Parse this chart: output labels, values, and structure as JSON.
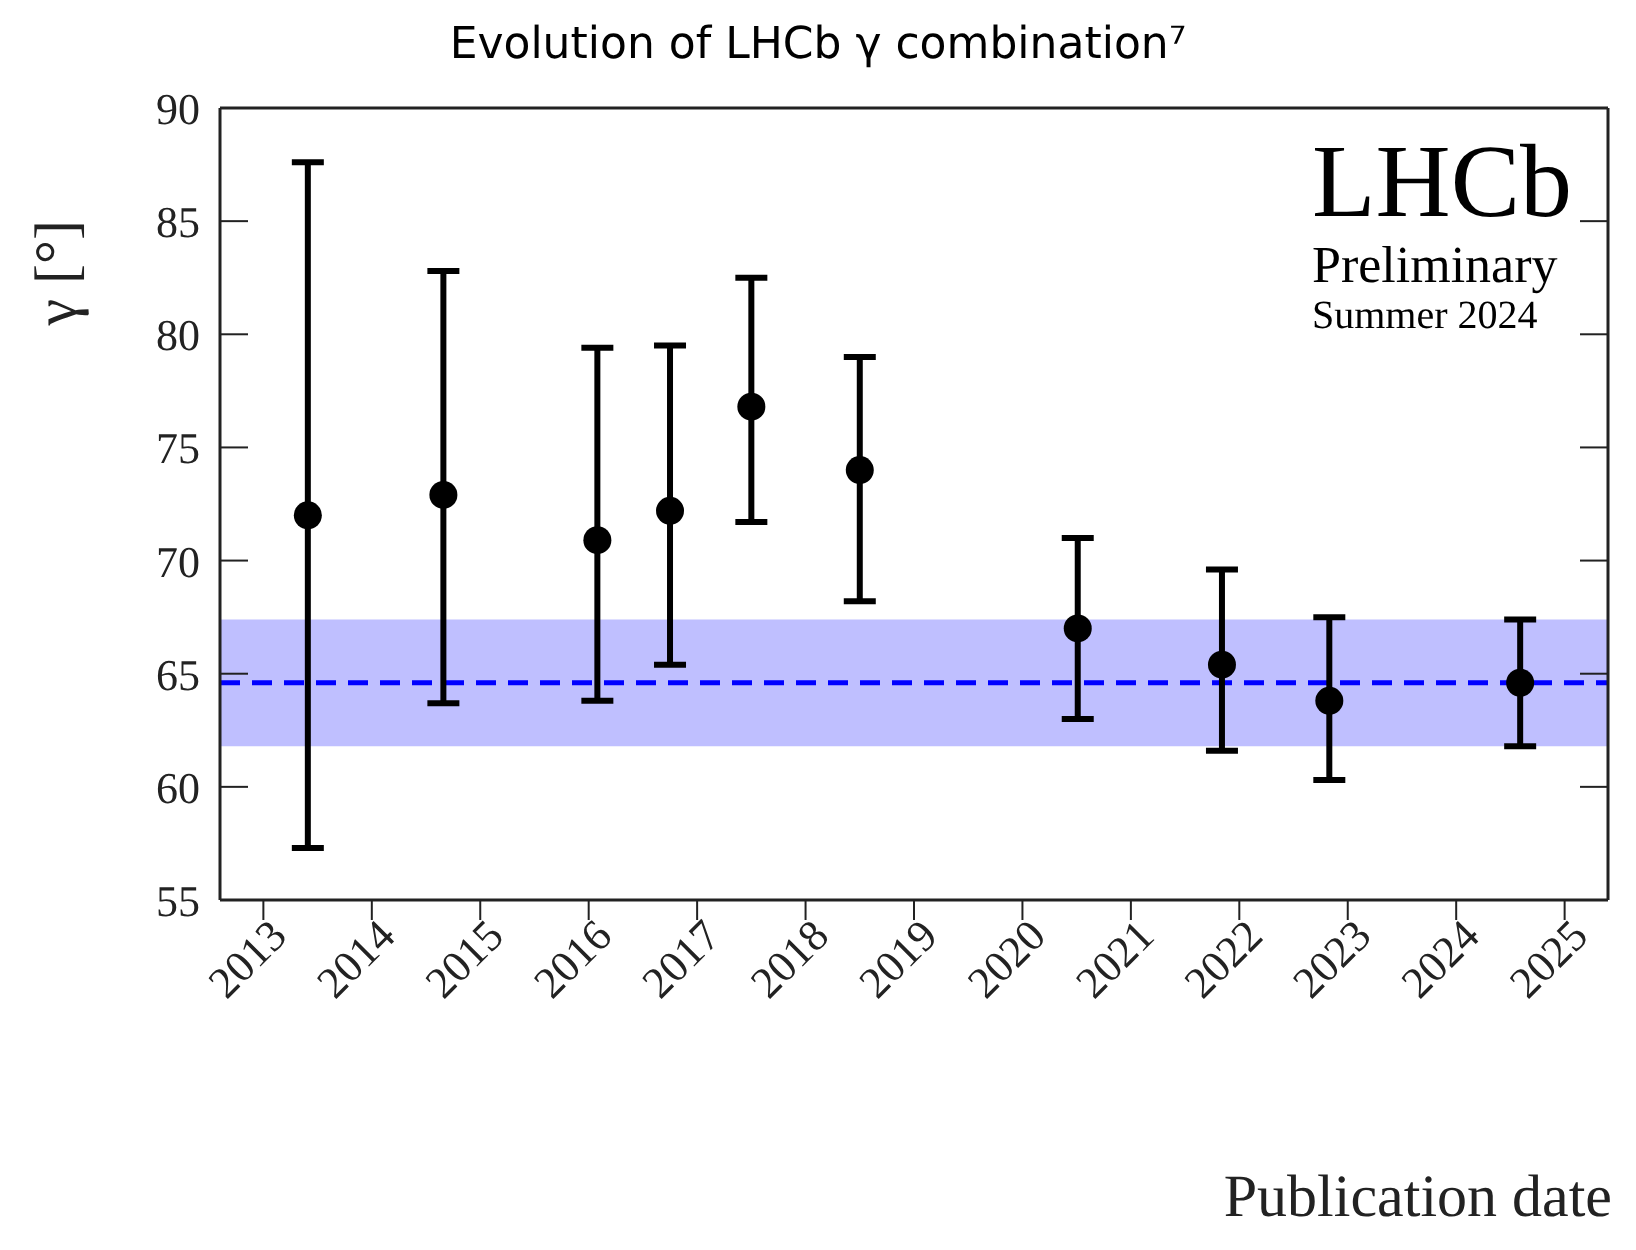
{
  "chart_data": {
    "type": "scatter",
    "title": "Evolution of LHCb γ combination⁷",
    "xlabel": "Publication date",
    "ylabel": "γ [°]",
    "x": [
      2013.41,
      2014.66,
      2016.08,
      2016.75,
      2017.5,
      2018.5,
      2020.51,
      2021.84,
      2022.83,
      2024.59
    ],
    "series": [
      {
        "color": "#000000",
        "values": [
          72.0,
          72.9,
          70.9,
          72.2,
          76.8,
          74.0,
          67.0,
          65.4,
          63.8,
          64.6
        ],
        "errors": [
          [
            57.3,
            87.6
          ],
          [
            63.7,
            82.8
          ],
          [
            63.8,
            79.4
          ],
          [
            65.4,
            79.5
          ],
          [
            71.7,
            82.5
          ],
          [
            68.2,
            79.0
          ],
          [
            63.0,
            71.0
          ],
          [
            61.6,
            69.6
          ],
          [
            60.3,
            67.5
          ],
          [
            61.8,
            67.4
          ]
        ]
      }
    ],
    "marker": "circle",
    "xlim": [
      2012.6,
      2025.4
    ],
    "xticks": [
      2013,
      2014,
      2015,
      2016,
      2017,
      2018,
      2019,
      2020,
      2021,
      2022,
      2023,
      2024,
      2025
    ],
    "ylim": [
      55,
      90
    ],
    "yticks": [
      55,
      60,
      65,
      70,
      75,
      80,
      85,
      90
    ],
    "ref_lines": [
      {
        "axis": "y",
        "value": 64.6,
        "color": "#0000ff",
        "line_style": "dashed"
      }
    ],
    "bands": [
      {
        "axis": "y",
        "from": 61.8,
        "to": 67.4,
        "color": "#bfbfff"
      }
    ],
    "annotations": [
      "LHCb",
      "Preliminary",
      "Summer 2024"
    ]
  }
}
